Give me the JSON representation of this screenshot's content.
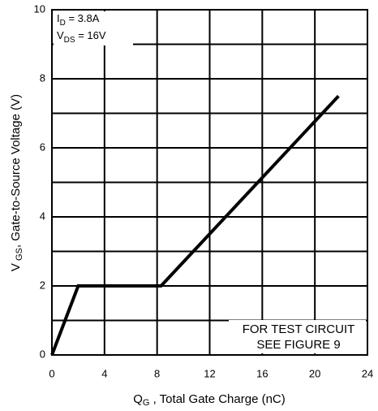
{
  "chart_data": {
    "type": "line",
    "x": [
      0,
      2,
      8.3,
      21.8
    ],
    "series": [
      {
        "name": "VGS",
        "color": "#000000",
        "values": [
          0,
          2,
          2,
          7.5
        ]
      }
    ],
    "xlim": [
      0,
      24
    ],
    "xticks": [
      0,
      4,
      8,
      12,
      16,
      20,
      24
    ],
    "ylim": [
      0,
      10
    ],
    "yticks": [
      0,
      2,
      4,
      6,
      8,
      10
    ],
    "yminor": [
      1,
      3,
      5,
      7,
      9
    ],
    "grid": true,
    "x_label": {
      "main": "Q",
      "sub": "G",
      "rest": " , Total Gate Charge (nC)"
    },
    "y_label": {
      "main": "V",
      "sub": " GS",
      "rest": ", Gate-to-Source Voltage (V)"
    },
    "annotations": [
      {
        "main": "I",
        "sub": "D",
        "rest": " = 3.8A"
      },
      {
        "main": "V",
        "sub": "DS",
        "rest": " = 16V"
      }
    ],
    "note": [
      "FOR TEST CIRCUIT",
      "SEE FIGURE 9"
    ]
  }
}
